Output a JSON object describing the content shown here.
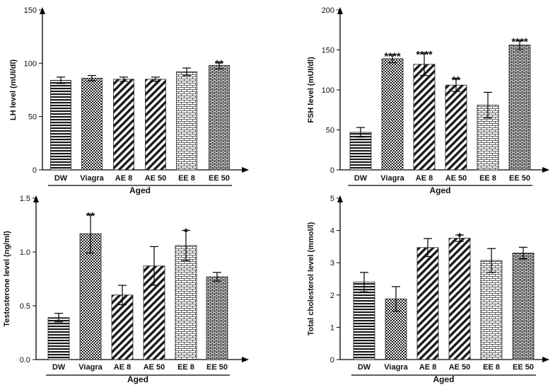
{
  "figure": {
    "group_label": "Aged",
    "categories": [
      "DW",
      "Viagra",
      "AE 8",
      "AE 50",
      "EE 8",
      "EE 50"
    ],
    "patterns": [
      "horizontal-lines",
      "checker-fine",
      "diagonal-stripes",
      "diagonal-stripes",
      "brick",
      "brick-dense"
    ]
  },
  "chart_data": [
    {
      "type": "bar",
      "name": "lh",
      "ylabel": "LH level (mUI/dl)",
      "categories": [
        "DW",
        "Viagra",
        "AE 8",
        "AE 50",
        "EE 8",
        "EE 50"
      ],
      "values": [
        84,
        86,
        85,
        85,
        92,
        98
      ],
      "errors": [
        3,
        2.5,
        2,
        2,
        3.5,
        3
      ],
      "significance": [
        "",
        "",
        "",
        "",
        "",
        "**"
      ],
      "ylim": [
        0,
        150
      ],
      "yticks": [
        0,
        50,
        100,
        150
      ],
      "ytick_labels": [
        "0",
        "50",
        "100",
        "150"
      ],
      "xgroup": "Aged"
    },
    {
      "type": "bar",
      "name": "fsh",
      "ylabel": "FSH level (mUI/dl)",
      "categories": [
        "DW",
        "Viagra",
        "AE 8",
        "AE 50",
        "EE 8",
        "EE 50"
      ],
      "values": [
        47,
        139,
        132,
        106,
        81,
        156
      ],
      "errors": [
        6,
        5,
        14,
        8,
        16,
        6
      ],
      "significance": [
        "",
        "****",
        "****",
        "**",
        "",
        "****"
      ],
      "ylim": [
        0,
        200
      ],
      "yticks": [
        0,
        50,
        100,
        150,
        200
      ],
      "ytick_labels": [
        "0",
        "50",
        "100",
        "150",
        "200"
      ],
      "xgroup": "Aged"
    },
    {
      "type": "bar",
      "name": "testosterone",
      "ylabel": "Testosterone level (ng/ml)",
      "categories": [
        "DW",
        "Viagra",
        "AE 8",
        "AE 50",
        "EE 8",
        "EE 50"
      ],
      "values": [
        0.39,
        1.17,
        0.6,
        0.87,
        1.06,
        0.77
      ],
      "errors": [
        0.04,
        0.18,
        0.09,
        0.18,
        0.14,
        0.04
      ],
      "significance": [
        "",
        "**",
        "",
        "",
        "*",
        ""
      ],
      "ylim": [
        0,
        1.5
      ],
      "yticks": [
        0,
        0.5,
        1.0,
        1.5
      ],
      "ytick_labels": [
        "0.0",
        "0.5",
        "1.0",
        "1.5"
      ],
      "xgroup": "Aged"
    },
    {
      "type": "bar",
      "name": "cholesterol",
      "ylabel": "Total cholesterol level (mmol/l)",
      "categories": [
        "DW",
        "Viagra",
        "AE 8",
        "AE 50",
        "EE 8",
        "EE 50"
      ],
      "values": [
        2.4,
        1.88,
        3.47,
        3.76,
        3.07,
        3.3
      ],
      "errors": [
        0.3,
        0.38,
        0.28,
        0.1,
        0.37,
        0.18
      ],
      "significance": [
        "",
        "",
        "",
        "*",
        "",
        ""
      ],
      "ylim": [
        0,
        5
      ],
      "yticks": [
        0,
        1,
        2,
        3,
        4,
        5
      ],
      "ytick_labels": [
        "0",
        "1",
        "2",
        "3",
        "4",
        "5"
      ],
      "xgroup": "Aged"
    }
  ]
}
